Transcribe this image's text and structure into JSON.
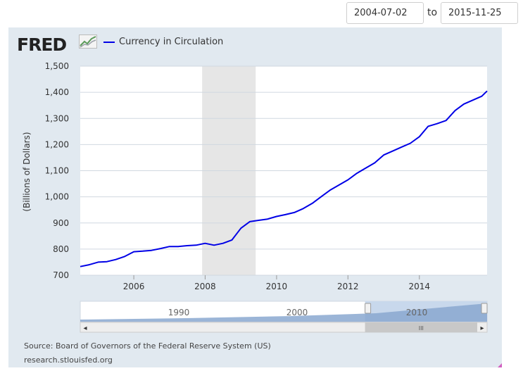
{
  "controls": {
    "start_date": "2004-07-02",
    "to_label": "to",
    "end_date": "2015-11-25"
  },
  "brand": {
    "logo_text": "FRED"
  },
  "footer": {
    "source": "Source: Board of Governors of the Federal Reserve System (US)",
    "site": "research.stlouisfed.org"
  },
  "navigator": {
    "labels": [
      "1990",
      "2000",
      "2010"
    ],
    "window_start_fraction": 0.7,
    "window_end_fraction": 1.0,
    "scroll_left_glyph": "◂",
    "scroll_right_glyph": "▸",
    "scroll_grip_glyph": "III"
  },
  "chart_data": {
    "type": "line",
    "title": "",
    "xlabel": "",
    "ylabel": "(Billions of Dollars)",
    "xlim": [
      "2004-07-02",
      "2015-11-25"
    ],
    "ylim": [
      700,
      1500
    ],
    "yticks": [
      700,
      800,
      900,
      1000,
      1100,
      1200,
      1300,
      1400,
      1500
    ],
    "ytick_labels": [
      "700",
      "800",
      "900",
      "1,000",
      "1,100",
      "1,200",
      "1,300",
      "1,400",
      "1,500"
    ],
    "xticks": [
      "2006-01-01",
      "2008-01-01",
      "2010-01-01",
      "2012-01-01",
      "2014-01-01"
    ],
    "xtick_labels": [
      "2006",
      "2008",
      "2010",
      "2012",
      "2014"
    ],
    "grid": true,
    "legend_position": "top-left",
    "recession_band": [
      "2007-12-01",
      "2009-06-01"
    ],
    "series": [
      {
        "name": "Currency in Circulation",
        "color": "#0000e6",
        "x": [
          "2004-07-02",
          "2004-10-01",
          "2005-01-01",
          "2005-04-01",
          "2005-07-01",
          "2005-10-01",
          "2006-01-01",
          "2006-04-01",
          "2006-07-01",
          "2006-10-01",
          "2007-01-01",
          "2007-04-01",
          "2007-07-01",
          "2007-10-01",
          "2008-01-01",
          "2008-04-01",
          "2008-07-01",
          "2008-10-01",
          "2009-01-01",
          "2009-04-01",
          "2009-07-01",
          "2009-10-01",
          "2010-01-01",
          "2010-04-01",
          "2010-07-01",
          "2010-10-01",
          "2011-01-01",
          "2011-04-01",
          "2011-07-01",
          "2011-10-01",
          "2012-01-01",
          "2012-04-01",
          "2012-07-01",
          "2012-10-01",
          "2013-01-01",
          "2013-04-01",
          "2013-07-01",
          "2013-10-01",
          "2014-01-01",
          "2014-04-01",
          "2014-07-01",
          "2014-10-01",
          "2015-01-01",
          "2015-04-01",
          "2015-07-01",
          "2015-10-01",
          "2015-11-25"
        ],
        "values": [
          733,
          740,
          750,
          752,
          760,
          772,
          790,
          792,
          795,
          802,
          810,
          810,
          813,
          815,
          822,
          815,
          822,
          835,
          880,
          905,
          910,
          915,
          925,
          932,
          940,
          955,
          975,
          1000,
          1025,
          1045,
          1065,
          1090,
          1110,
          1130,
          1160,
          1175,
          1190,
          1205,
          1230,
          1270,
          1280,
          1292,
          1330,
          1355,
          1370,
          1385,
          1405
        ]
      }
    ]
  },
  "colors": {
    "frame_background": "#e1e9f0",
    "plot_background": "#ffffff",
    "recession": "#e6e6e6",
    "gridline": "#d0d8e0",
    "navigator_fill": "#8aa8d0",
    "navigator_window": "#c8d8ec"
  }
}
